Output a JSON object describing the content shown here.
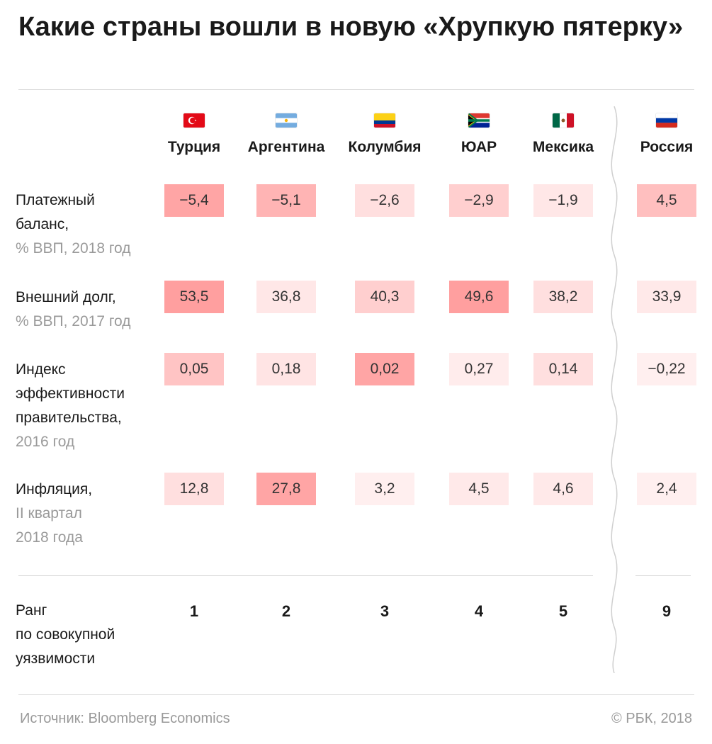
{
  "title": "Какие страны вошли в новую «Хрупкую пятерку»",
  "chart_data": {
    "type": "table",
    "columns": [
      {
        "name": "Турция",
        "flag": "turkey-flag-icon"
      },
      {
        "name": "Аргентина",
        "flag": "argentina-flag-icon"
      },
      {
        "name": "Колумбия",
        "flag": "colombia-flag-icon"
      },
      {
        "name": "ЮАР",
        "flag": "south-africa-flag-icon"
      },
      {
        "name": "Мексика",
        "flag": "mexico-flag-icon"
      },
      {
        "name": "Россия",
        "flag": "russia-flag-icon"
      }
    ],
    "rows": [
      {
        "label": [
          "Платежный",
          "баланс,"
        ],
        "sublabel": [
          "% ВВП, 2018 год"
        ],
        "values": [
          "−5,4",
          "−5,1",
          "−2,6",
          "−2,9",
          "−1,9",
          "4,5"
        ],
        "intensity": [
          0.75,
          0.6,
          0.2,
          0.35,
          0.12,
          0.5
        ]
      },
      {
        "label": [
          "Внешний долг,"
        ],
        "sublabel": [
          "% ВВП, 2017 год"
        ],
        "values": [
          "53,5",
          "36,8",
          "40,3",
          "49,6",
          "38,2",
          "33,9"
        ],
        "intensity": [
          0.8,
          0.12,
          0.35,
          0.8,
          0.2,
          0.1
        ]
      },
      {
        "label": [
          "Индекс",
          "эффективности",
          "правительства,"
        ],
        "sublabel": [
          "2016 год"
        ],
        "values": [
          "0,05",
          "0,18",
          "0,02",
          "0,27",
          "0,14",
          "−0,22"
        ],
        "intensity": [
          0.45,
          0.15,
          0.75,
          0.08,
          0.2,
          0.05
        ]
      },
      {
        "label": [
          "Инфляция,"
        ],
        "sublabel": [
          "II квартал",
          "2018 года"
        ],
        "values": [
          "12,8",
          "27,8",
          "3,2",
          "4,5",
          "4,6",
          "2,4"
        ],
        "intensity": [
          0.2,
          0.75,
          0.05,
          0.1,
          0.1,
          0.05
        ]
      }
    ],
    "rank_row": {
      "label": [
        "Ранг",
        "по совокупной",
        "уязвимости"
      ],
      "values": [
        "1",
        "2",
        "3",
        "4",
        "5",
        "9"
      ]
    }
  },
  "colors": {
    "cell_max": "#ff8a8a",
    "cell_min": "#fff4f4",
    "rule": "#d9d9d9"
  },
  "footer": {
    "source": "Источник: Bloomberg Economics",
    "copyright": "© РБК, 2018"
  }
}
